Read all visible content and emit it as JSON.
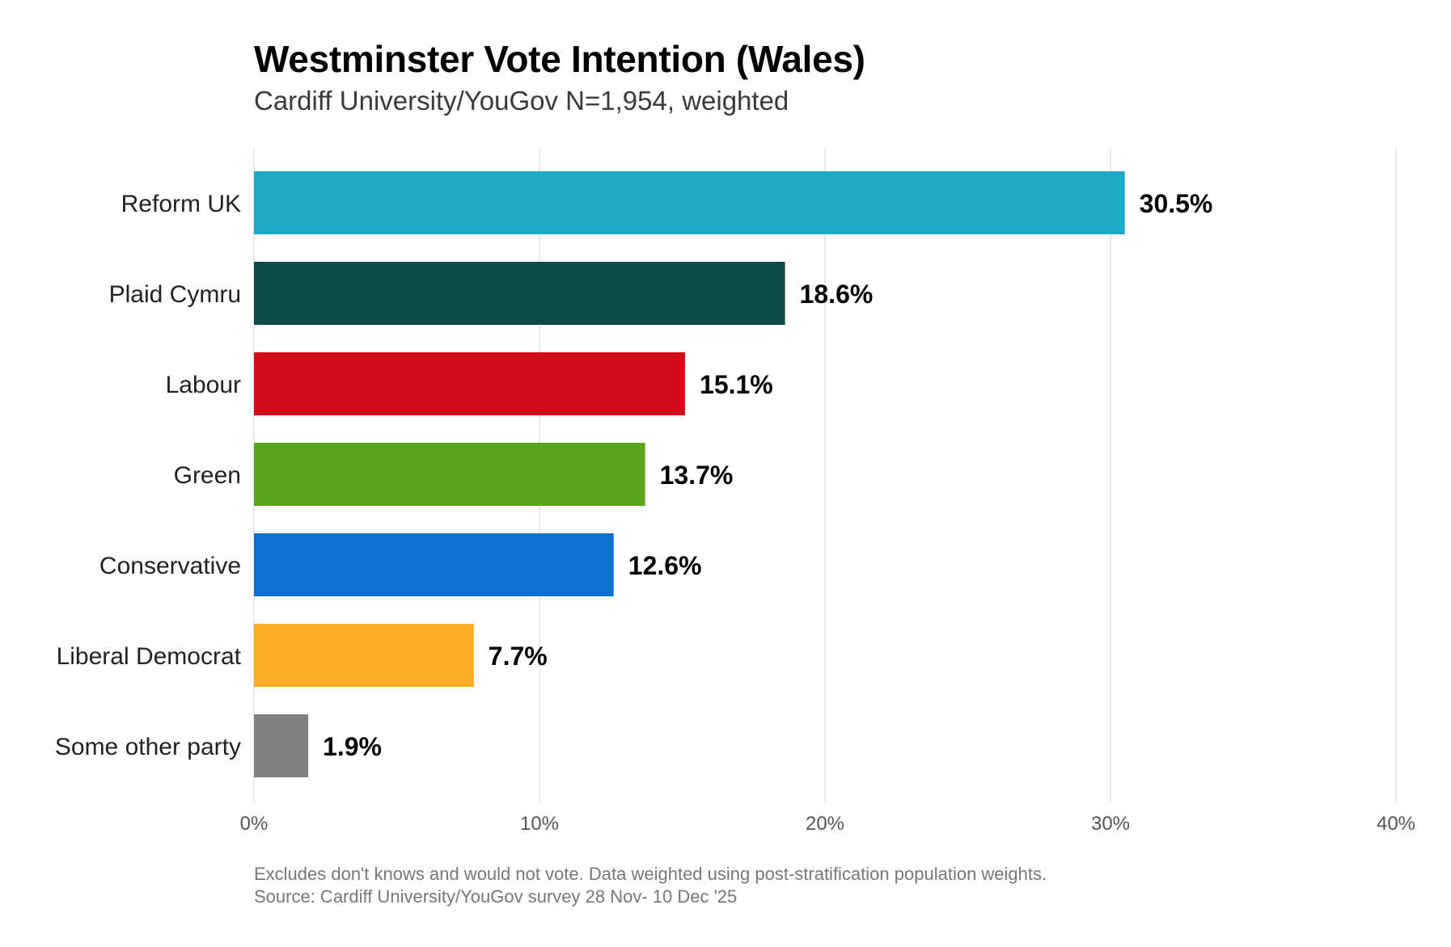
{
  "chart_data": {
    "type": "bar",
    "orientation": "horizontal",
    "title": "Westminster Vote Intention (Wales)",
    "subtitle": "Cardiff University/YouGov N=1,954, weighted",
    "categories": [
      "Reform UK",
      "Plaid Cymru",
      "Labour",
      "Green",
      "Conservative",
      "Liberal Democrat",
      "Some other party"
    ],
    "values": [
      30.5,
      18.6,
      15.1,
      13.7,
      12.6,
      7.7,
      1.9
    ],
    "value_labels": [
      "30.5%",
      "18.6%",
      "15.1%",
      "13.7%",
      "12.6%",
      "7.7%",
      "1.9%"
    ],
    "colors": [
      "#1da8c6",
      "#0c4c44",
      "#d00c18",
      "#5aa51e",
      "#0e72d4",
      "#fbad27",
      "#808080"
    ],
    "xlabel": "",
    "ylabel": "",
    "xlim": [
      0,
      40
    ],
    "xticks": [
      0,
      10,
      20,
      30,
      40
    ],
    "xtick_labels": [
      "0%",
      "10%",
      "20%",
      "30%",
      "40%"
    ],
    "grid": "vertical",
    "legend": "none",
    "footnote": [
      "Excludes don't knows and would not vote. Data weighted using post-stratification population weights.",
      "Source: Cardiff University/YouGov survey 28 Nov- 10 Dec '25"
    ]
  }
}
